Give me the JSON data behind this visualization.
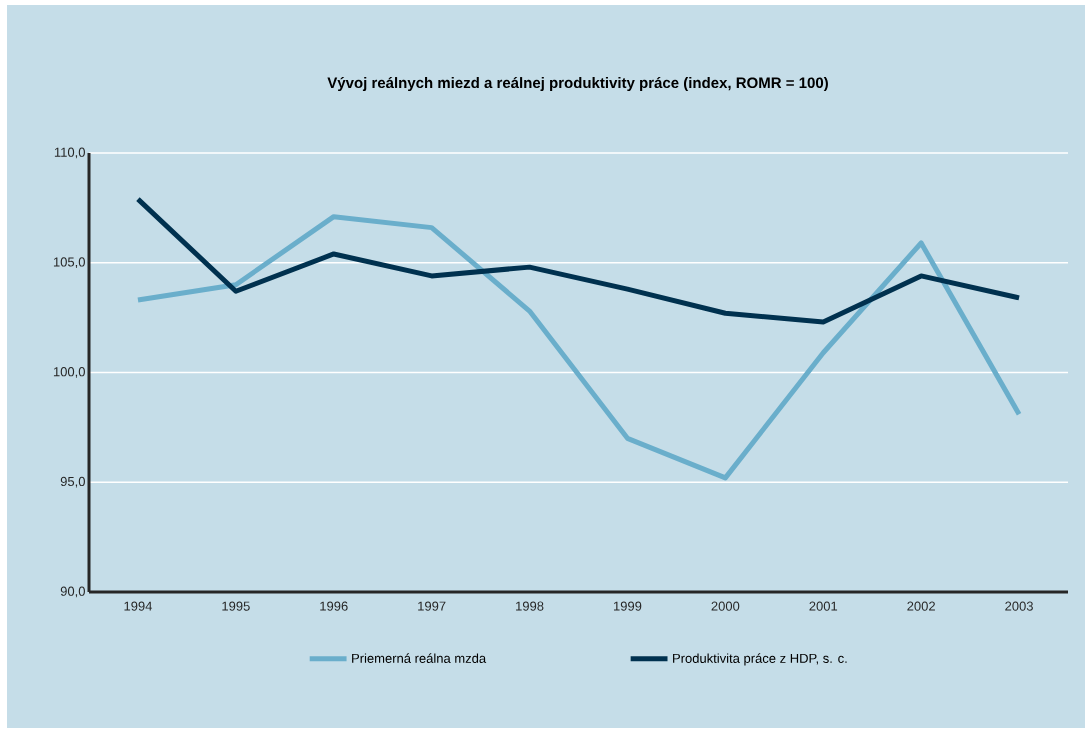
{
  "chart_data": {
    "type": "line",
    "title": "**Vývoj reálnych miezd a reálnej produktivity práce (index, ROMR = 100)**",
    "categories": [
      "1994",
      "1995",
      "1996",
      "1997",
      "1998",
      "1999",
      "2000",
      "2001",
      "2002",
      "2003"
    ],
    "series": [
      {
        "name": "Priemerná reálna mzda",
        "color": "#6aaecb",
        "values": [
          103.3,
          104.0,
          107.1,
          106.6,
          102.8,
          97.0,
          95.2,
          100.9,
          105.9,
          98.1
        ]
      },
      {
        "name": "Produktivita práce z HDP, s. c.",
        "color": "#00314f",
        "values": [
          107.9,
          103.7,
          105.4,
          104.4,
          104.8,
          103.8,
          102.7,
          102.3,
          104.4,
          103.4
        ]
      }
    ],
    "ylim": [
      90,
      110
    ],
    "yticks": [
      {
        "value": 90,
        "label": "90,0"
      },
      {
        "value": 95,
        "label": "95,0"
      },
      {
        "value": 100,
        "label": "100,0"
      },
      {
        "value": 105,
        "label": "105,0"
      },
      {
        "value": 110,
        "label": "110,0"
      }
    ],
    "grid": "y",
    "legend": "bottom",
    "marker": "none",
    "line_style": "solid"
  }
}
